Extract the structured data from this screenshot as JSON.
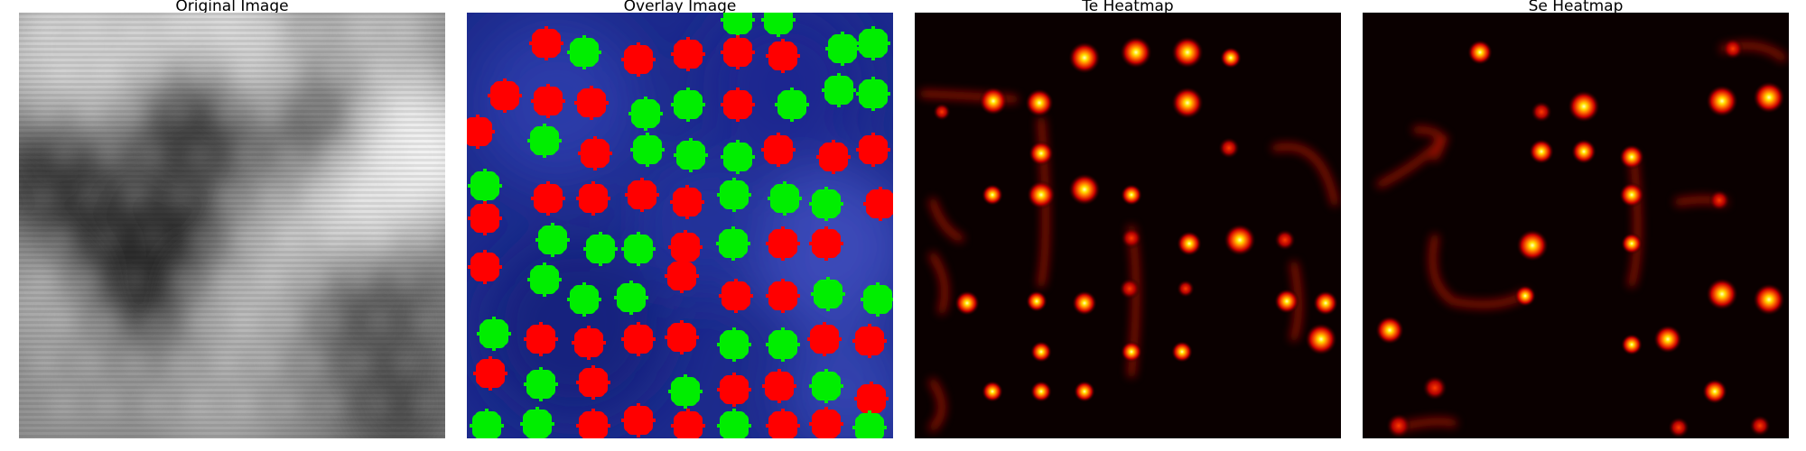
{
  "panels": [
    {
      "id": "original",
      "title": "Original Image"
    },
    {
      "id": "overlay",
      "title": "Overlay Image"
    },
    {
      "id": "te",
      "title": "Te Heatmap"
    },
    {
      "id": "se",
      "title": "Se Heatmap"
    }
  ],
  "colors": {
    "marker_red": "#ff0000",
    "marker_green": "#00ee00",
    "overlay_bg": "#1c2a8c",
    "heatmap_bg": "#0a0000"
  }
}
